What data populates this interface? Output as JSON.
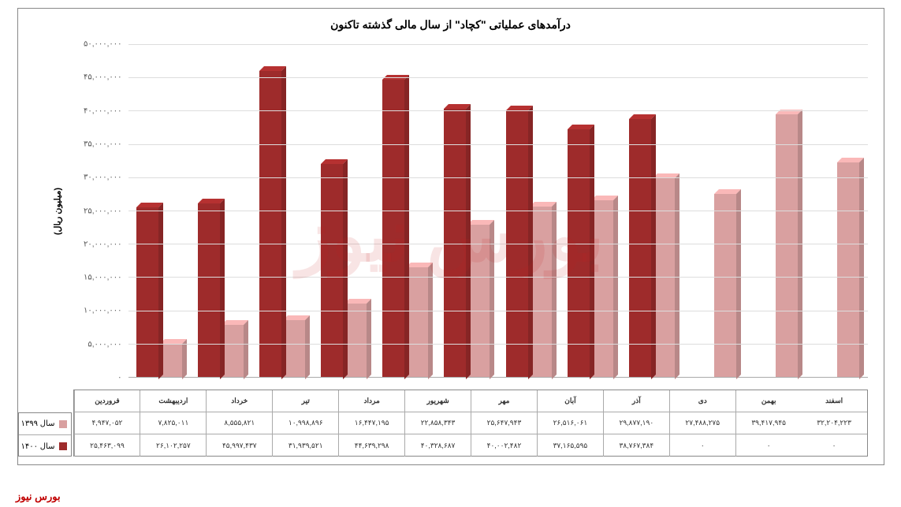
{
  "chart": {
    "type": "bar",
    "title": "درآمدهای عملیاتی \"کچاد\" از سال مالی گذشته تاکنون",
    "y_axis_title": "(میلیون ریال)",
    "watermark": "بورس نیوز",
    "footer": "بورس نیوز",
    "y_max": 50000000,
    "y_tick_step": 5000000,
    "y_ticks": [
      {
        "value": 0,
        "label": "۰"
      },
      {
        "value": 5000000,
        "label": "۵,۰۰۰,۰۰۰"
      },
      {
        "value": 10000000,
        "label": "۱۰,۰۰۰,۰۰۰"
      },
      {
        "value": 15000000,
        "label": "۱۵,۰۰۰,۰۰۰"
      },
      {
        "value": 20000000,
        "label": "۲۰,۰۰۰,۰۰۰"
      },
      {
        "value": 25000000,
        "label": "۲۵,۰۰۰,۰۰۰"
      },
      {
        "value": 30000000,
        "label": "۳۰,۰۰۰,۰۰۰"
      },
      {
        "value": 35000000,
        "label": "۳۵,۰۰۰,۰۰۰"
      },
      {
        "value": 40000000,
        "label": "۴۰,۰۰۰,۰۰۰"
      },
      {
        "value": 45000000,
        "label": "۴۵,۰۰۰,۰۰۰"
      },
      {
        "value": 50000000,
        "label": "۵۰,۰۰۰,۰۰۰"
      }
    ],
    "categories": [
      "فروردین",
      "اردیبهشت",
      "خرداد",
      "تیر",
      "مرداد",
      "شهریور",
      "مهر",
      "آبان",
      "آذر",
      "دی",
      "بهمن",
      "اسفند"
    ],
    "series": [
      {
        "name": "سال ۱۳۹۹",
        "color": "#d9a0a0",
        "color_top": "#e5b8b8",
        "color_side": "#c08888",
        "values": [
          4947052,
          7825011,
          8555821,
          10998896,
          16447195,
          22858343,
          25647943,
          26516061,
          29877190,
          27488275,
          39417945,
          32204223
        ],
        "labels": [
          "۴,۹۴۷,۰۵۲",
          "۷,۸۲۵,۰۱۱",
          "۸,۵۵۵,۸۲۱",
          "۱۰,۹۹۸,۸۹۶",
          "۱۶,۴۴۷,۱۹۵",
          "۲۲,۸۵۸,۳۴۳",
          "۲۵,۶۴۷,۹۴۳",
          "۲۶,۵۱۶,۰۶۱",
          "۲۹,۸۷۷,۱۹۰",
          "۲۷,۴۸۸,۲۷۵",
          "۳۹,۴۱۷,۹۴۵",
          "۳۲,۲۰۴,۲۲۳"
        ]
      },
      {
        "name": "سال ۱۴۰۰",
        "color": "#9e2b2b",
        "color_top": "#b84040",
        "color_side": "#7a2020",
        "values": [
          25463099,
          26102257,
          45997437,
          31939521,
          44639298,
          40328687,
          40002482,
          37165595,
          38767384,
          0,
          0,
          0
        ],
        "labels": [
          "۲۵,۴۶۳,۰۹۹",
          "۲۶,۱۰۲,۲۵۷",
          "۴۵,۹۹۷,۴۳۷",
          "۳۱,۹۳۹,۵۲۱",
          "۴۴,۶۳۹,۲۹۸",
          "۴۰,۳۲۸,۶۸۷",
          "۴۰,۰۰۲,۴۸۲",
          "۳۷,۱۶۵,۵۹۵",
          "۳۸,۷۶۷,۳۸۴",
          "۰",
          "۰",
          "۰"
        ]
      }
    ],
    "background_color": "#ffffff",
    "grid_color": "#dddddd",
    "border_color": "#888888"
  }
}
